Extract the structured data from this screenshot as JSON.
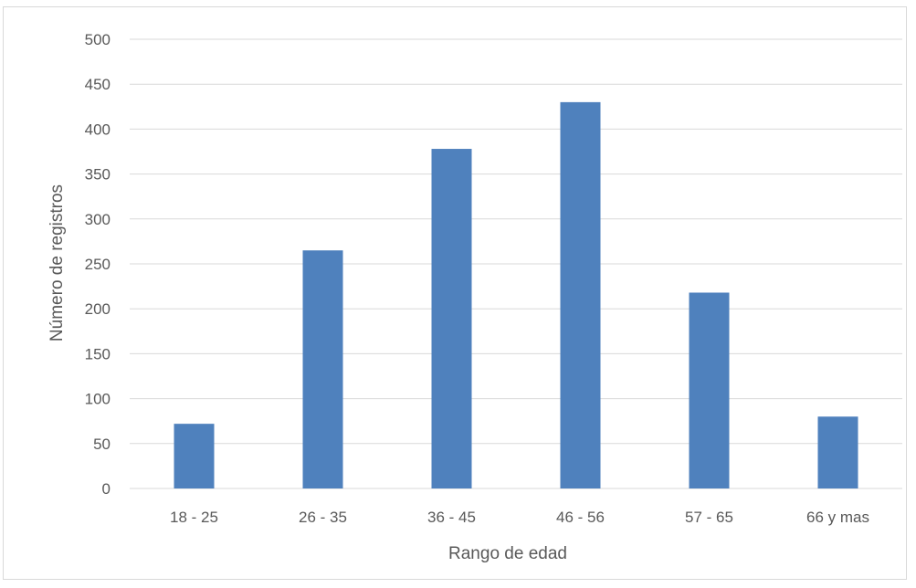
{
  "chart_data": {
    "type": "bar",
    "title": "",
    "xlabel": "Rango de edad",
    "ylabel": "Número de registros",
    "categories": [
      "18 - 25",
      "26 - 35",
      "36 - 45",
      "46 - 56",
      "57 - 65",
      "66 y mas"
    ],
    "values": [
      72,
      265,
      378,
      430,
      218,
      80
    ],
    "ylim": [
      0,
      500
    ],
    "yticks": [
      0,
      50,
      100,
      150,
      200,
      250,
      300,
      350,
      400,
      450,
      500
    ],
    "ytick_labels": [
      "0",
      "50",
      "100",
      "150",
      "200",
      "250",
      "300",
      "350",
      "400",
      "450",
      "500"
    ],
    "grid": true,
    "legend": "none",
    "colors": {
      "bar": "#4f81bd",
      "grid": "#d9d9d9",
      "text": "#595959",
      "border": "#d9d9d9"
    }
  }
}
